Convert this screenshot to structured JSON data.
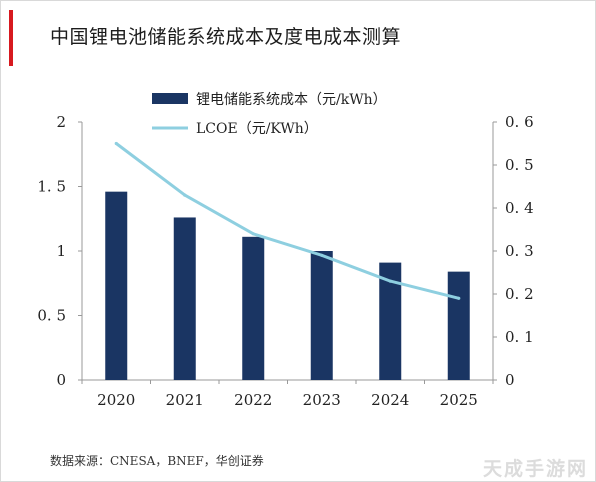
{
  "header": {
    "title": "中国锂电池储能系统成本及度电成本测算"
  },
  "footer": {
    "source": "数据来源：CNESA，BNEF，华创证券",
    "watermark": "天成手游网"
  },
  "chart_data": {
    "type": "bar",
    "title": "中国锂电池储能系统成本及度电成本测算",
    "categories": [
      "2020",
      "2021",
      "2022",
      "2023",
      "2024",
      "2025"
    ],
    "series": [
      {
        "name": "锂电储能系统成本（元/kWh）",
        "type": "bar",
        "axis": "left",
        "color": "#1a3563",
        "values": [
          1.46,
          1.26,
          1.11,
          1.0,
          0.91,
          0.84
        ]
      },
      {
        "name": "LCOE（元/KWh）",
        "type": "line",
        "axis": "right",
        "color": "#8ecfe0",
        "values": [
          0.55,
          0.43,
          0.34,
          0.29,
          0.23,
          0.19
        ]
      }
    ],
    "left_axis": {
      "ylim": [
        0,
        2
      ],
      "ticks": [
        "0",
        "0. 5",
        "1",
        "1. 5",
        "2"
      ]
    },
    "right_axis": {
      "ylim": [
        0,
        0.6
      ],
      "ticks": [
        "0",
        "0. 1",
        "0. 2",
        "0. 3",
        "0. 4",
        "0. 5",
        "0. 6"
      ]
    },
    "grid": false,
    "legend_position": "top"
  }
}
